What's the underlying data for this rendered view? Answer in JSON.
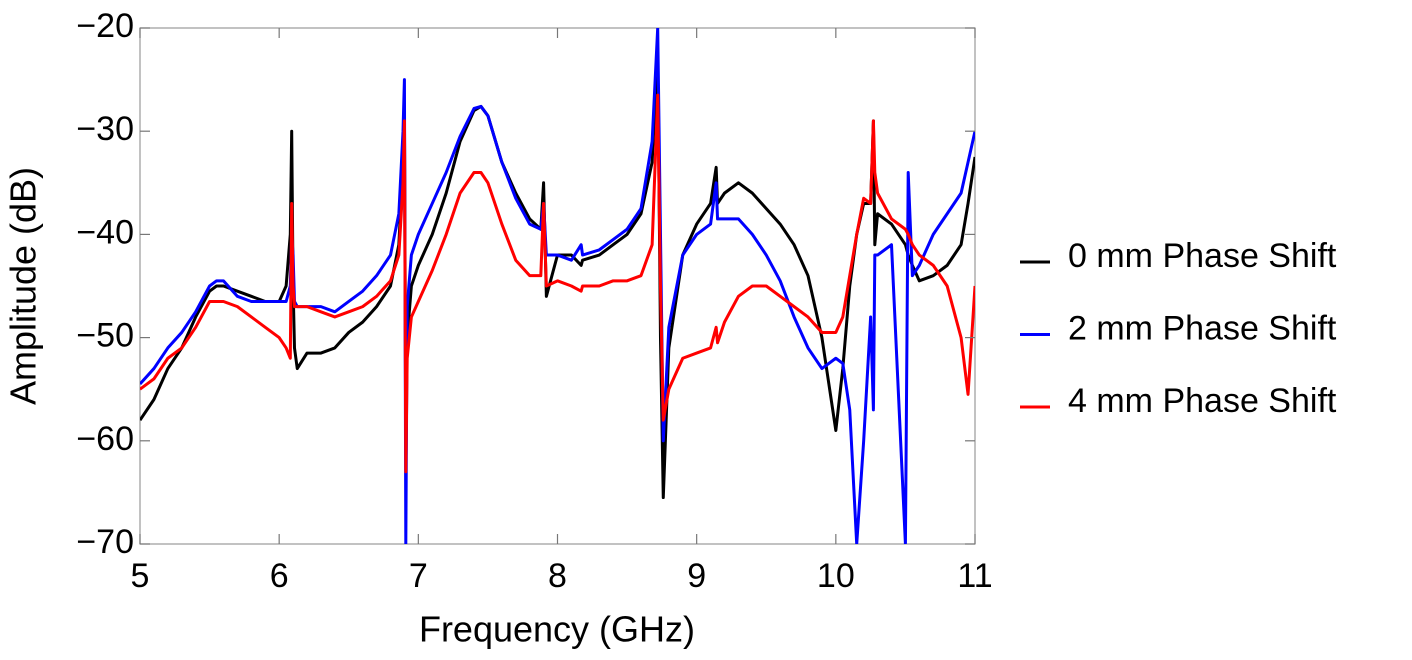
{
  "chart_data": {
    "type": "line",
    "x_label": "Frequency (GHz)",
    "y_label": "Amplitude (dB)",
    "xlim": [
      5,
      11
    ],
    "ylim": [
      -70,
      -20
    ],
    "xticks": [
      5,
      6,
      7,
      8,
      9,
      10,
      11
    ],
    "yticks": [
      {
        "value": -70,
        "label": "−70"
      },
      {
        "value": -60,
        "label": "−60"
      },
      {
        "value": -50,
        "label": "−50"
      },
      {
        "value": -40,
        "label": "−40"
      },
      {
        "value": -30,
        "label": "−30"
      },
      {
        "value": -20,
        "label": "−20"
      }
    ],
    "legend": "right",
    "x": [
      5.0,
      5.1,
      5.2,
      5.3,
      5.4,
      5.5,
      5.55,
      5.6,
      5.7,
      5.8,
      5.9,
      6.0,
      6.05,
      6.08,
      6.09,
      6.1,
      6.11,
      6.13,
      6.2,
      6.3,
      6.4,
      6.5,
      6.6,
      6.7,
      6.8,
      6.86,
      6.89,
      6.9,
      6.91,
      6.92,
      6.95,
      7.0,
      7.1,
      7.2,
      7.3,
      7.4,
      7.45,
      7.5,
      7.6,
      7.7,
      7.8,
      7.88,
      7.9,
      7.92,
      8.0,
      8.1,
      8.17,
      8.18,
      8.3,
      8.4,
      8.5,
      8.6,
      8.68,
      8.72,
      8.74,
      8.76,
      8.8,
      8.9,
      9.0,
      9.1,
      9.14,
      9.15,
      9.2,
      9.3,
      9.4,
      9.5,
      9.6,
      9.7,
      9.8,
      9.9,
      10.0,
      10.05,
      10.1,
      10.15,
      10.2,
      10.25,
      10.27,
      10.28,
      10.3,
      10.4,
      10.5,
      10.52,
      10.55,
      10.6,
      10.7,
      10.8,
      10.9,
      10.95,
      11.0
    ],
    "series": [
      {
        "name": "0 mm Phase Shift",
        "color": "#000000",
        "values": [
          -58,
          -56,
          -53,
          -51,
          -48,
          -45.5,
          -45,
          -45,
          -45.5,
          -46,
          -46.5,
          -46.5,
          -45,
          -40,
          -30,
          -45,
          -51,
          -53,
          -51.5,
          -51.5,
          -51,
          -49.5,
          -48.5,
          -47,
          -45,
          -41,
          -33,
          -28,
          -60,
          -50,
          -45,
          -43,
          -40,
          -36,
          -31,
          -28,
          -27.6,
          -28.5,
          -33,
          -36,
          -38.5,
          -39.5,
          -35,
          -46,
          -42,
          -42,
          -43,
          -42.5,
          -42,
          -41,
          -40,
          -38,
          -33,
          -22,
          -50,
          -65.5,
          -51,
          -42,
          -39,
          -37,
          -33.5,
          -37,
          -36,
          -35,
          -36,
          -37.5,
          -39,
          -41,
          -44,
          -50,
          -59,
          -53,
          -45,
          -40,
          -37,
          -37,
          -29,
          -41,
          -38,
          -39,
          -41,
          -42,
          -43,
          -44.5,
          -44,
          -43,
          -41,
          -37,
          -32.5
        ]
      },
      {
        "name": "2 mm Phase Shift",
        "color": "#0000ff",
        "values": [
          -54.5,
          -53,
          -51,
          -49.5,
          -47.5,
          -45,
          -44.5,
          -44.5,
          -46,
          -46.5,
          -46.5,
          -46.5,
          -46.5,
          -45,
          -40,
          -42,
          -46.5,
          -47,
          -47,
          -47,
          -47.5,
          -46.5,
          -45.5,
          -44,
          -42,
          -38,
          -30,
          -25,
          -70,
          -47,
          -42,
          -40,
          -37,
          -34,
          -30.5,
          -27.8,
          -27.6,
          -28.5,
          -33,
          -36.5,
          -39,
          -39.5,
          -37,
          -42,
          -42,
          -42.5,
          -41,
          -42,
          -41.5,
          -40.5,
          -39.5,
          -37.5,
          -31,
          -20,
          -40,
          -60,
          -49,
          -42,
          -40,
          -39,
          -35,
          -38.5,
          -38.5,
          -38.5,
          -40,
          -42,
          -44.5,
          -48,
          -51,
          -53,
          -52,
          -52.5,
          -57,
          -70,
          -60,
          -48,
          -57,
          -42,
          -42,
          -41,
          -70,
          -34,
          -44,
          -43,
          -40,
          -38,
          -36,
          -33,
          -30
        ]
      },
      {
        "name": "4 mm Phase Shift",
        "color": "#ff0000",
        "values": [
          -55,
          -54,
          -52,
          -51,
          -49,
          -46.5,
          -46.5,
          -46.5,
          -47,
          -48,
          -49,
          -50,
          -51,
          -52,
          -37,
          -45,
          -47,
          -47,
          -47,
          -47.5,
          -48,
          -47.5,
          -47,
          -46,
          -44.5,
          -42,
          -35,
          -29,
          -63,
          -52,
          -48,
          -46.5,
          -43.5,
          -40,
          -36,
          -34,
          -34,
          -35,
          -39,
          -42.5,
          -44,
          -44,
          -37,
          -45,
          -44.5,
          -45,
          -45.5,
          -45,
          -45,
          -44.5,
          -44.5,
          -44,
          -41,
          -26.5,
          -45,
          -58,
          -55,
          -52,
          -51.5,
          -51,
          -49,
          -50.5,
          -48.5,
          -46,
          -45,
          -45,
          -46,
          -47,
          -48,
          -49.5,
          -49.5,
          -48,
          -44,
          -40,
          -36.5,
          -37,
          -29,
          -34,
          -36,
          -38.5,
          -39.5,
          -40,
          -41,
          -42,
          -43,
          -45,
          -50,
          -55.5,
          -45
        ]
      }
    ]
  }
}
